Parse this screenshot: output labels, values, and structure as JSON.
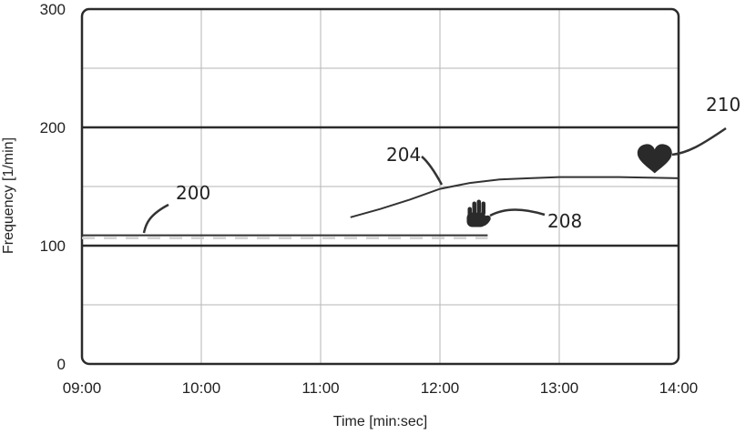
{
  "chart_data": {
    "type": "line",
    "title": "",
    "xlabel": "Time [min:sec]",
    "ylabel": "Frequency [1/min]",
    "x_ticks": [
      "09:00",
      "10:00",
      "11:00",
      "12:00",
      "13:00",
      "14:00"
    ],
    "y_ticks": [
      "0",
      "100",
      "200",
      "300"
    ],
    "xlim": [
      "09:00",
      "14:00"
    ],
    "ylim": [
      0,
      300
    ],
    "grid": true,
    "reference_lines": [
      {
        "y": 100
      },
      {
        "y": 200
      }
    ],
    "series": [
      {
        "label": "200",
        "style": "dashed",
        "points": [
          [
            "09:00",
            108
          ],
          [
            "12:24",
            108
          ]
        ]
      },
      {
        "label": "204",
        "style": "solid",
        "points": [
          [
            "11:15",
            124
          ],
          [
            "11:30",
            131
          ],
          [
            "11:45",
            139
          ],
          [
            "12:00",
            148
          ],
          [
            "12:15",
            153
          ],
          [
            "12:30",
            156
          ],
          [
            "12:45",
            157
          ],
          [
            "13:00",
            158
          ],
          [
            "13:30",
            158
          ],
          [
            "14:00",
            157
          ]
        ]
      }
    ],
    "annotations": [
      {
        "label": "208",
        "marker": "hand-icon",
        "at": [
          "12:19",
          125
        ]
      },
      {
        "label": "210",
        "marker": "heart-icon",
        "at": [
          "13:48",
          172
        ]
      }
    ]
  },
  "colors": {
    "frame": "#2b2b2b",
    "grid": "#b5b5b5",
    "line": "#333333",
    "dash": "#d0d0d0"
  }
}
